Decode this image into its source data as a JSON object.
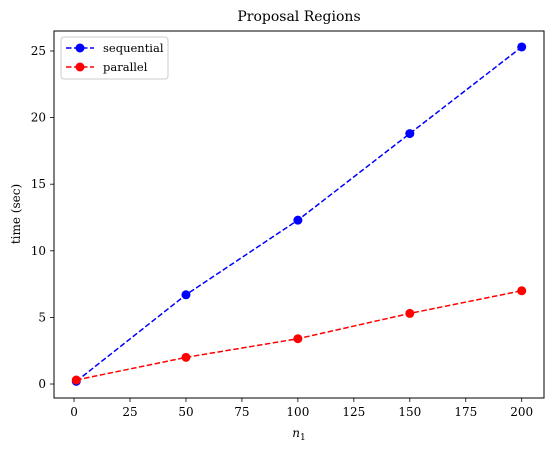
{
  "chart_data": {
    "type": "line",
    "title": "Proposal Regions",
    "xlabel": "n",
    "xlabel_sub": "1",
    "ylabel": "time (sec)",
    "xlim": [
      -8.95,
      209.95
    ],
    "ylim": [
      -1.05,
      26.5
    ],
    "xticks": [
      0,
      25,
      50,
      75,
      100,
      125,
      150,
      175,
      200
    ],
    "yticks": [
      0,
      5,
      10,
      15,
      20,
      25
    ],
    "grid": false,
    "legend_position": "top-left",
    "series": [
      {
        "name": "sequential",
        "color": "#0000ff",
        "x": [
          1,
          50,
          100,
          150,
          200
        ],
        "y": [
          0.2,
          6.7,
          12.3,
          18.8,
          25.3
        ]
      },
      {
        "name": "parallel",
        "color": "#ff0000",
        "x": [
          1,
          50,
          100,
          150,
          200
        ],
        "y": [
          0.3,
          2.0,
          3.4,
          5.3,
          7.0
        ]
      }
    ]
  }
}
